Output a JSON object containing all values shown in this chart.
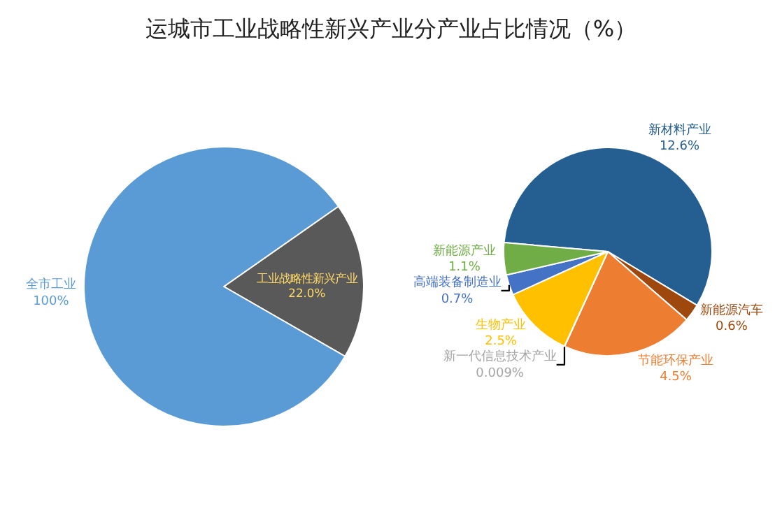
{
  "chart_data": [
    {
      "type": "pie",
      "title": "运城市工业战略性新兴产业分产业占比情况（%）",
      "categories": [
        "工业战略性新兴产业",
        "全市工业"
      ],
      "values": [
        22.0,
        100
      ],
      "value_labels": [
        "22.0%",
        "100%"
      ],
      "colors": [
        "#595959",
        "#5b9bd5"
      ]
    },
    {
      "type": "pie",
      "categories": [
        "新材料产业",
        "新能源汽车",
        "节能环保产业",
        "新一代信息技术产业",
        "生物产业",
        "高端装备制造业",
        "新能源产业"
      ],
      "values": [
        12.6,
        0.6,
        4.5,
        0.009,
        2.5,
        0.7,
        1.1
      ],
      "value_labels": [
        "12.6%",
        "0.6%",
        "4.5%",
        "0.009%",
        "2.5%",
        "0.7%",
        "1.1%"
      ],
      "colors": [
        "#255e91",
        "#9e480e",
        "#ed7d31",
        "#a5a5a5",
        "#ffc000",
        "#4472c4",
        "#70ad47"
      ]
    }
  ]
}
